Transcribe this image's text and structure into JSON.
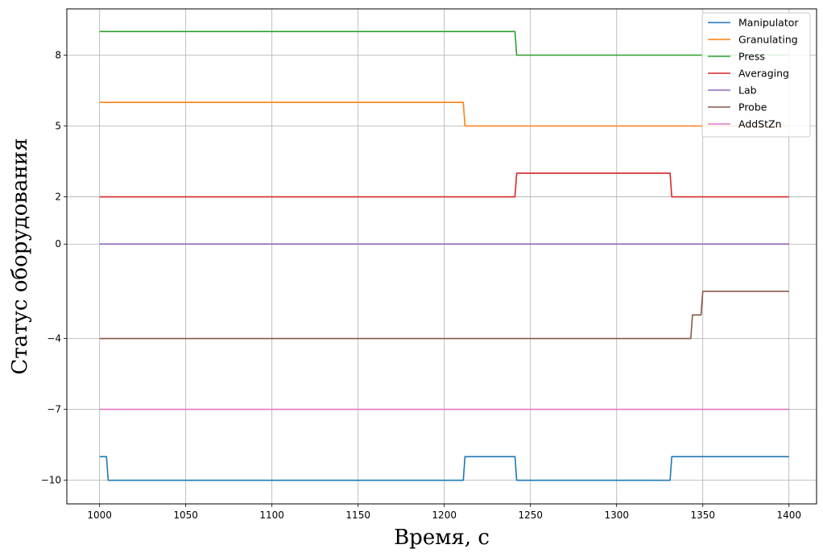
{
  "chart_data": {
    "type": "line",
    "title": "",
    "xlabel": "Время, с",
    "ylabel": "Статус оборудования",
    "xlim": [
      981,
      1416
    ],
    "ylim": [
      -11.0,
      9.96
    ],
    "xticks": [
      1000,
      1050,
      1100,
      1150,
      1200,
      1250,
      1300,
      1350,
      1400
    ],
    "yticks": [
      -10,
      -7,
      -4,
      0,
      2,
      5,
      8
    ],
    "grid": true,
    "legend_position": "top-right",
    "series": [
      {
        "name": "Manipulator",
        "color": "#1f77b4",
        "points": [
          [
            1000,
            -9
          ],
          [
            1004,
            -9
          ],
          [
            1005,
            -10
          ],
          [
            1211,
            -10
          ],
          [
            1212,
            -9
          ],
          [
            1241,
            -9
          ],
          [
            1242,
            -10
          ],
          [
            1331,
            -10
          ],
          [
            1332,
            -9
          ],
          [
            1400,
            -9
          ]
        ]
      },
      {
        "name": "Granulating",
        "color": "#ff7f0e",
        "points": [
          [
            1000,
            6
          ],
          [
            1211,
            6
          ],
          [
            1212,
            5
          ],
          [
            1400,
            5
          ]
        ]
      },
      {
        "name": "Press",
        "color": "#2ca02c",
        "points": [
          [
            1000,
            9
          ],
          [
            1241,
            9
          ],
          [
            1242,
            8
          ],
          [
            1400,
            8
          ]
        ]
      },
      {
        "name": "Averaging",
        "color": "#d62728",
        "points": [
          [
            1000,
            2
          ],
          [
            1241,
            2
          ],
          [
            1242,
            3
          ],
          [
            1331,
            3
          ],
          [
            1332,
            2
          ],
          [
            1400,
            2
          ]
        ]
      },
      {
        "name": "Lab",
        "color": "#9467bd",
        "points": [
          [
            1000,
            0
          ],
          [
            1400,
            0
          ]
        ]
      },
      {
        "name": "Probe",
        "color": "#8c564b",
        "points": [
          [
            1000,
            -4
          ],
          [
            1343,
            -4
          ],
          [
            1344,
            -3
          ],
          [
            1349,
            -3
          ],
          [
            1350,
            -2
          ],
          [
            1400,
            -2
          ]
        ]
      },
      {
        "name": "AddStZn",
        "color": "#e377c2",
        "points": [
          [
            1000,
            -7
          ],
          [
            1400,
            -7
          ]
        ]
      }
    ]
  }
}
